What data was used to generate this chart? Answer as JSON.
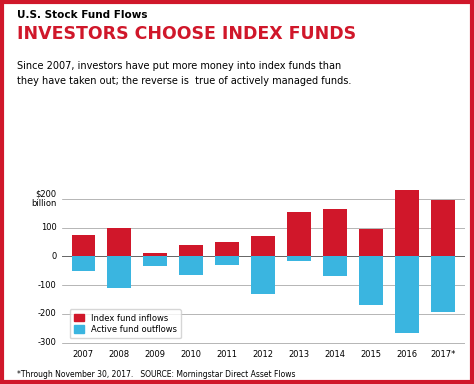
{
  "years": [
    "2007",
    "2008",
    "2009",
    "2010",
    "2011",
    "2012",
    "2013",
    "2014",
    "2015",
    "2016",
    "2017*"
  ],
  "index_inflows": [
    75,
    100,
    10,
    40,
    50,
    70,
    155,
    165,
    95,
    230,
    195
  ],
  "active_outflows": [
    -50,
    -110,
    -35,
    -65,
    -30,
    -130,
    -15,
    -70,
    -170,
    -265,
    -195
  ],
  "index_color": "#d0172a",
  "active_color": "#3ab5e0",
  "ylim": [
    -310,
    250
  ],
  "yticks": [
    -300,
    -200,
    -100,
    0,
    100,
    200
  ],
  "title_small": "U.S. Stock Fund Flows",
  "title_big": "INVESTORS CHOOSE INDEX FUNDS",
  "subtitle": "Since 2007, investors have put more money into index funds than\nthey have taken out; the reverse is  true of actively managed funds.",
  "footnote": "*Through November 30, 2017.   SOURCE: Morningstar Direct Asset Flows",
  "legend_index": "Index fund inflows",
  "legend_active": "Active fund outflows",
  "bg_color": "#ffffff",
  "border_color": "#d0172a"
}
